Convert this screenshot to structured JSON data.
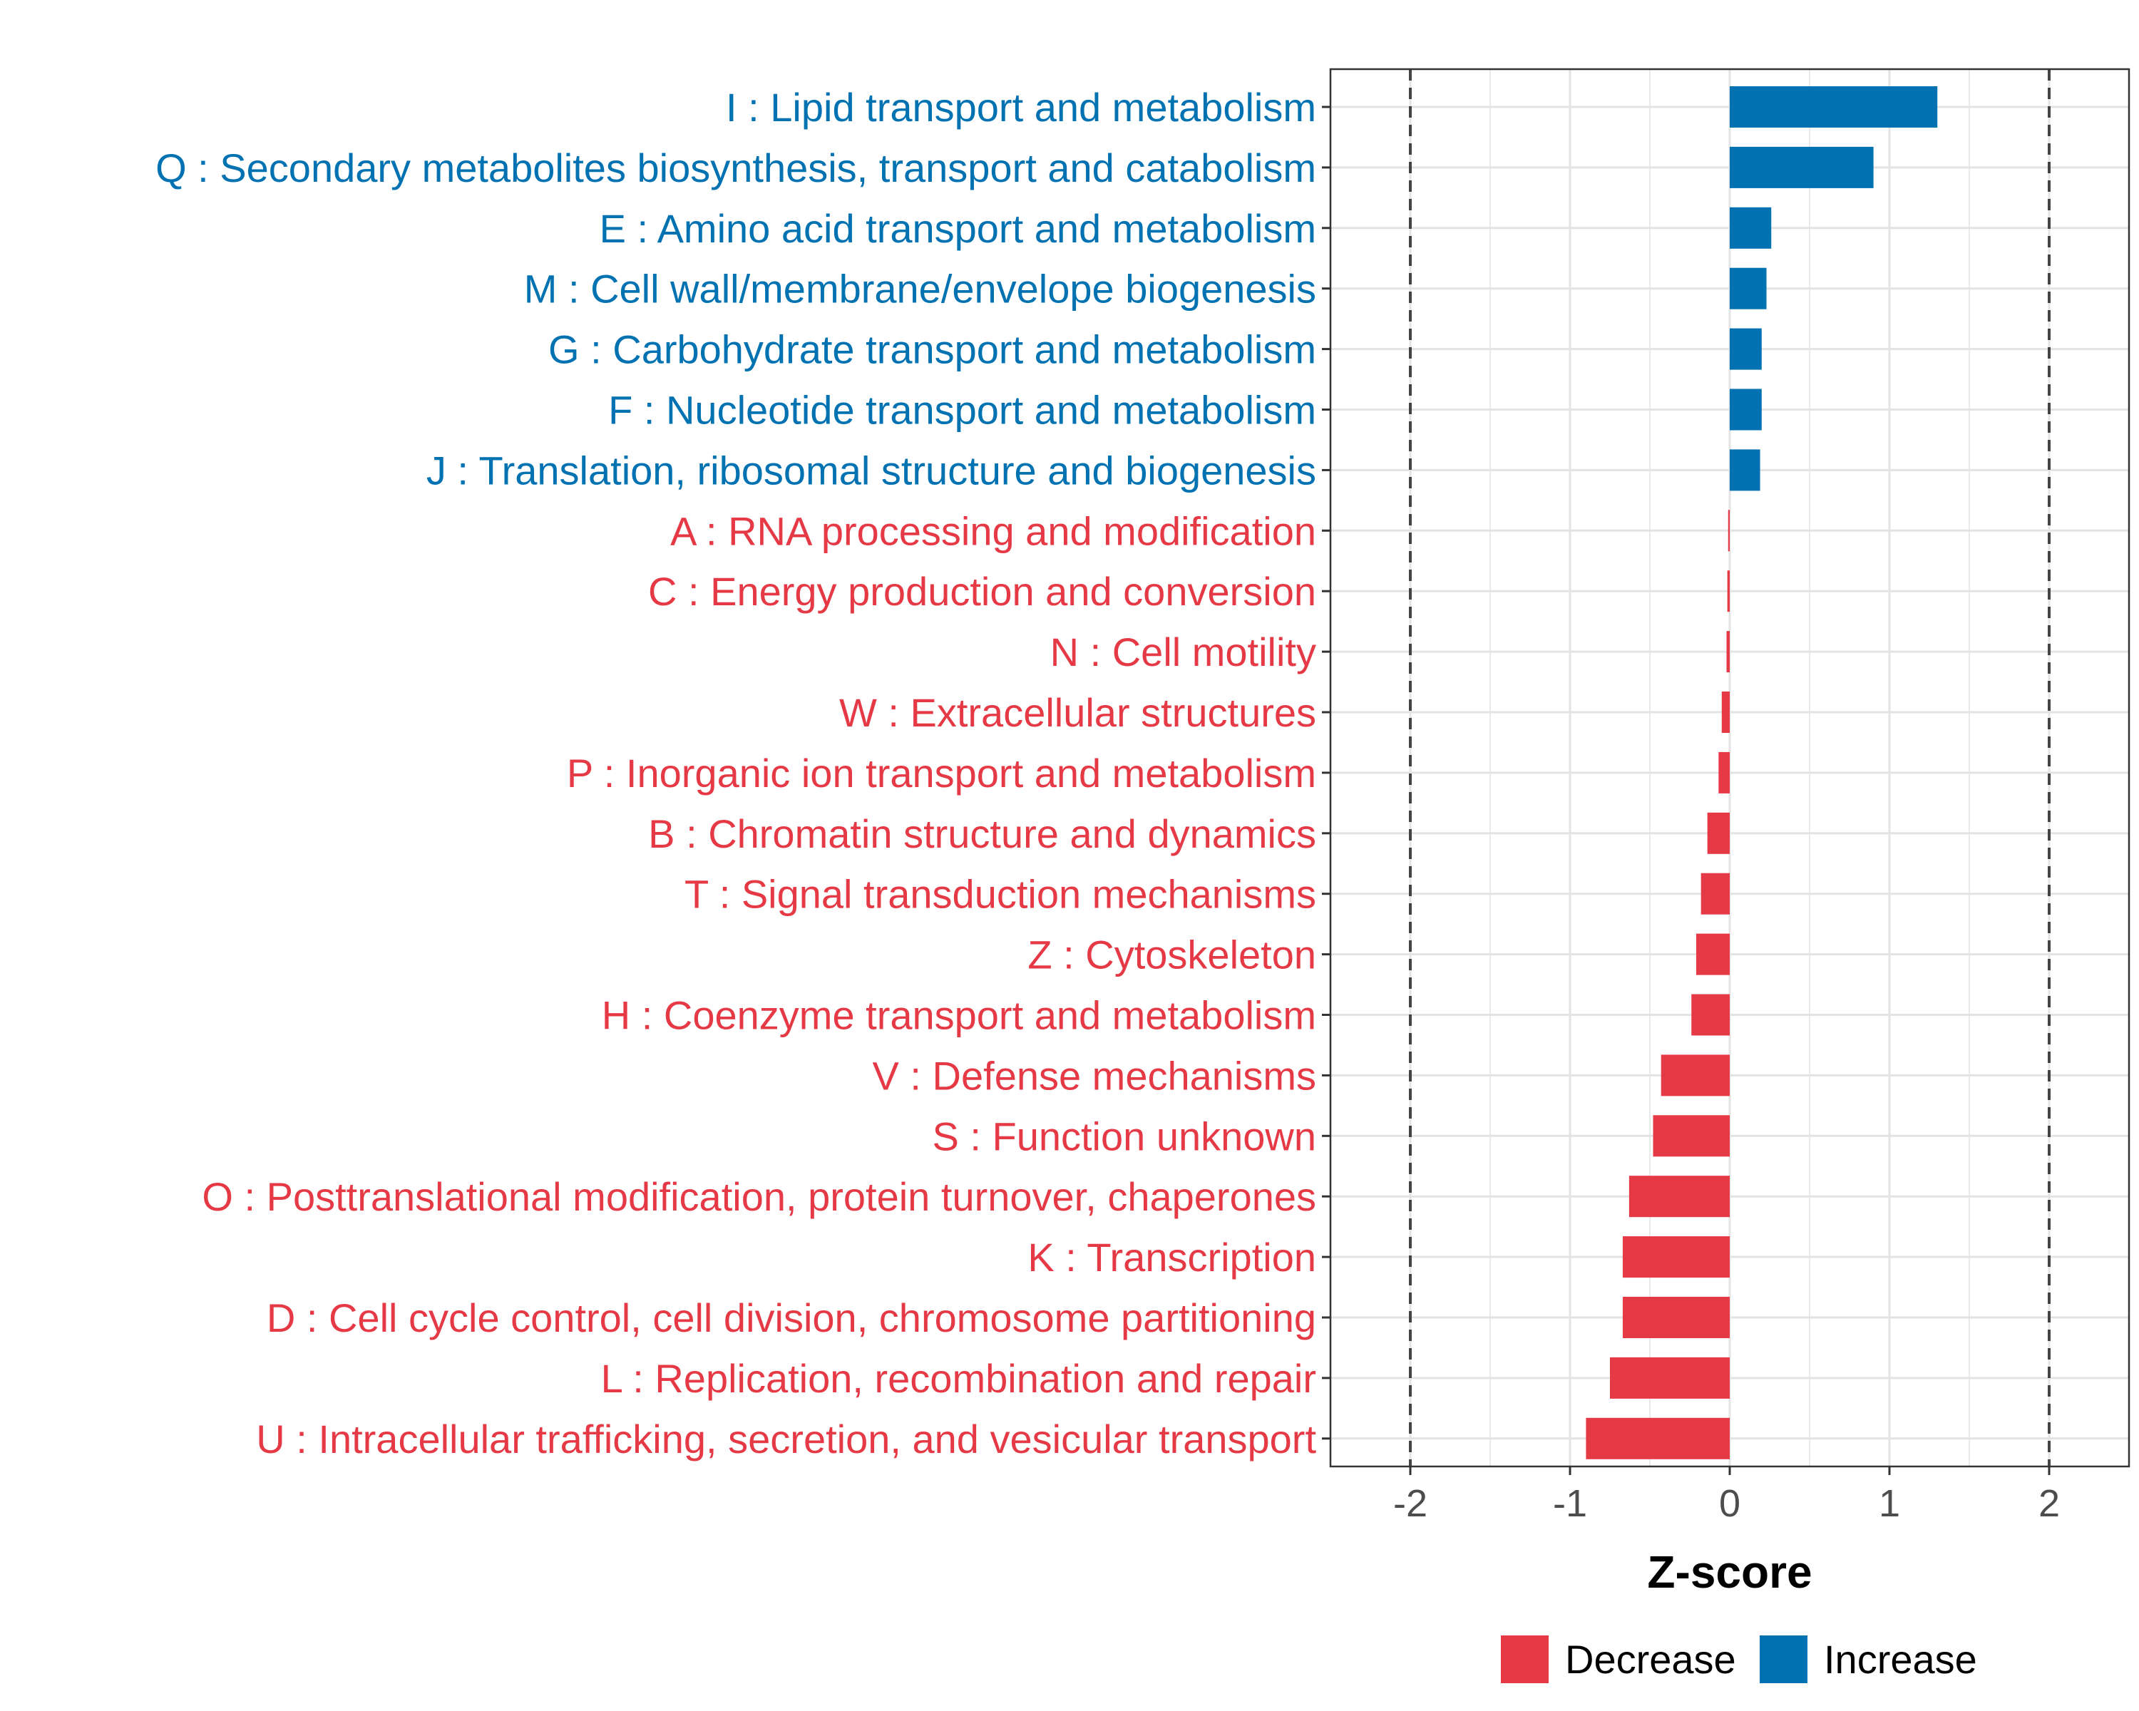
{
  "chart_data": {
    "type": "bar",
    "orientation": "horizontal",
    "xlabel": "Z-score",
    "xlim": [
      -2.5,
      2.5
    ],
    "xticks": [
      -2,
      -1,
      0,
      1,
      2
    ],
    "xtick_labels": [
      "-2",
      "-1",
      "0",
      "1",
      "2"
    ],
    "reference_lines": [
      -2,
      2
    ],
    "grid": true,
    "colors": {
      "Increase": "#0072B2",
      "Decrease": "#E63946"
    },
    "categories": [
      "I : Lipid transport and metabolism",
      "Q : Secondary metabolites biosynthesis, transport and catabolism",
      "E : Amino acid transport and metabolism",
      "M : Cell wall/membrane/envelope biogenesis",
      "G : Carbohydrate transport and metabolism",
      "F : Nucleotide transport and metabolism",
      "J : Translation, ribosomal structure and biogenesis",
      "A : RNA processing and modification",
      "C : Energy production and conversion",
      "N : Cell motility",
      "W : Extracellular structures",
      "P : Inorganic ion transport and metabolism",
      "B : Chromatin structure and dynamics",
      "T : Signal transduction mechanisms",
      "Z : Cytoskeleton",
      "H : Coenzyme transport and metabolism",
      "V : Defense mechanisms",
      "S : Function unknown",
      "O : Posttranslational modification, protein turnover, chaperones",
      "K : Transcription",
      "D : Cell cycle control, cell division, chromosome partitioning",
      "L : Replication, recombination and repair",
      "U : Intracellular trafficking, secretion, and vesicular transport"
    ],
    "values": [
      1.3,
      0.9,
      0.26,
      0.23,
      0.2,
      0.2,
      0.19,
      -0.01,
      -0.015,
      -0.02,
      -0.05,
      -0.07,
      -0.14,
      -0.18,
      -0.21,
      -0.24,
      -0.43,
      -0.48,
      -0.63,
      -0.67,
      -0.67,
      -0.75,
      -0.9
    ],
    "groups": [
      "Increase",
      "Increase",
      "Increase",
      "Increase",
      "Increase",
      "Increase",
      "Increase",
      "Decrease",
      "Decrease",
      "Decrease",
      "Decrease",
      "Decrease",
      "Decrease",
      "Decrease",
      "Decrease",
      "Decrease",
      "Decrease",
      "Decrease",
      "Decrease",
      "Decrease",
      "Decrease",
      "Decrease",
      "Decrease"
    ],
    "legend": {
      "position": "bottom",
      "entries": [
        "Decrease",
        "Increase"
      ]
    }
  }
}
